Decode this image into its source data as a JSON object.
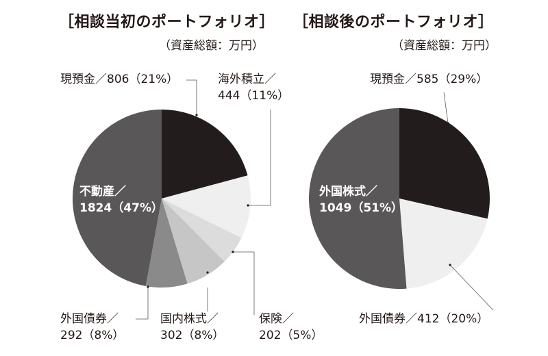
{
  "chart_data": [
    {
      "type": "pie",
      "title": "［相談当初のポートフォリオ］",
      "subtitle": "（資産総額：万円）",
      "start": "top",
      "direction": "clockwise",
      "slices": [
        {
          "name": "現預金",
          "value": 806,
          "percent": 21,
          "label": "現預金／806（21%）",
          "color": "#231c1c"
        },
        {
          "name": "海外積立",
          "value": 444,
          "percent": 11,
          "label_line1": "海外積立／",
          "label_line2": "444（11%）",
          "color": "#efefef"
        },
        {
          "name": "保険",
          "value": 202,
          "percent": 5,
          "label_line1": "保険／",
          "label_line2": "202（5%）",
          "color": "#dcdcdc"
        },
        {
          "name": "国内株式",
          "value": 302,
          "percent": 8,
          "label_line1": "国内株式／",
          "label_line2": "302（8%）",
          "color": "#c6c6c6"
        },
        {
          "name": "外国債券",
          "value": 292,
          "percent": 8,
          "label_line1": "外国債券／",
          "label_line2": "292（8%）",
          "color": "#8a8a8a"
        },
        {
          "name": "不動産",
          "value": 1824,
          "percent": 47,
          "label_line1": "不動産／",
          "label_line2": "1824（47%）",
          "color": "#595758"
        }
      ]
    },
    {
      "type": "pie",
      "title": "［相談後のポートフォリオ］",
      "subtitle": "（資産総額：万円）",
      "start": "top",
      "direction": "clockwise",
      "slices": [
        {
          "name": "現預金",
          "value": 585,
          "percent": 29,
          "label": "現預金／585（29%）",
          "color": "#231c1c"
        },
        {
          "name": "外国債券",
          "value": 412,
          "percent": 20,
          "label": "外国債券／412（20%）",
          "color": "#efefef"
        },
        {
          "name": "外国株式",
          "value": 1049,
          "percent": 51,
          "label_line1": "外国株式／",
          "label_line2": "1049（51%）",
          "color": "#595758"
        }
      ]
    }
  ]
}
